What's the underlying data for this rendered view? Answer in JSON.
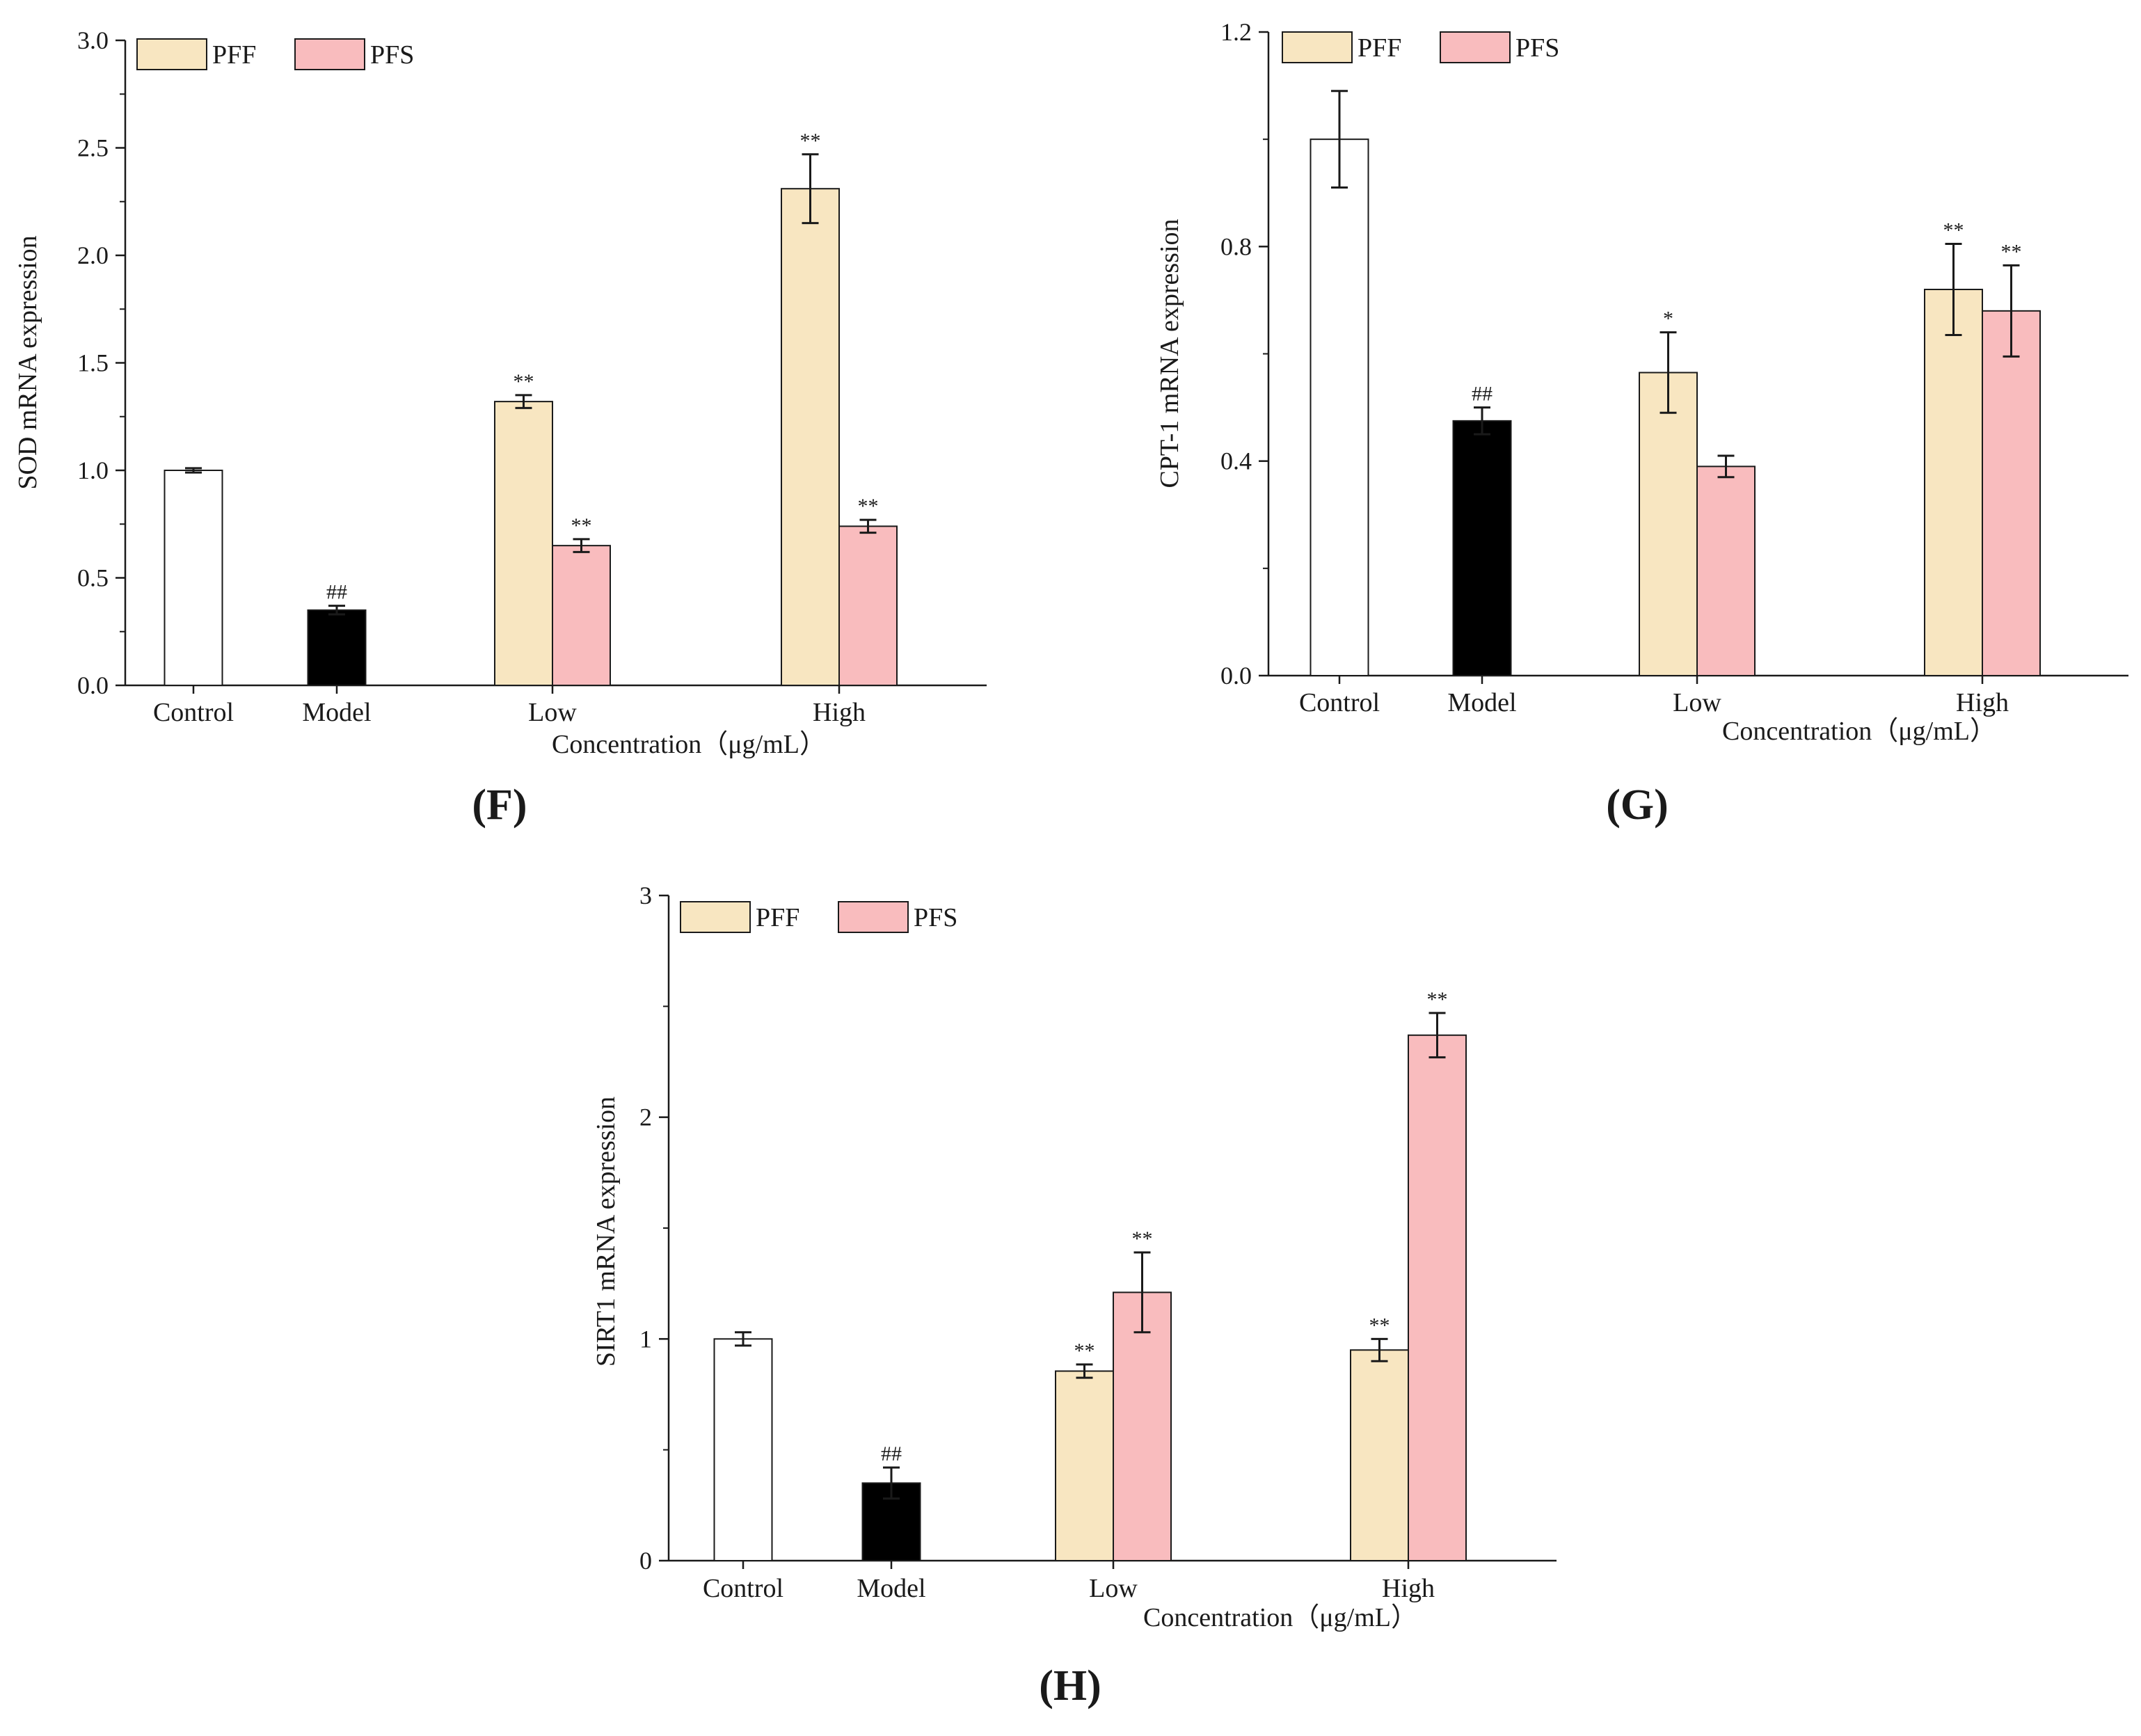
{
  "colors": {
    "PFF": "#f8e6c1",
    "PFS": "#f9bcbe",
    "Control": "#ffffff",
    "Model": "#000000",
    "stroke": "#1a1a1a"
  },
  "chart_data": [
    {
      "id": "F",
      "panel_label": "(F)",
      "type": "bar",
      "ylabel": "SOD mRNA expression",
      "xlabel": "Concentration（μg/mL）",
      "ylim": [
        0,
        3.0
      ],
      "yticks": [
        0,
        0.5,
        1.0,
        1.5,
        2.0,
        2.5,
        3.0
      ],
      "ytick_labels": [
        "0.0",
        "0.5",
        "1.0",
        "1.5",
        "2.0",
        "2.5",
        "3.0"
      ],
      "categories": [
        "Control",
        "Model",
        "Low",
        "High"
      ],
      "legend": [
        "PFF",
        "PFS"
      ],
      "legend_position": "top-left",
      "bars": [
        {
          "category": "Control",
          "series": "Control",
          "value": 1.0,
          "error": 0.01,
          "sig": ""
        },
        {
          "category": "Model",
          "series": "Model",
          "value": 0.35,
          "error": 0.02,
          "sig": "##"
        },
        {
          "category": "Low",
          "series": "PFF",
          "value": 1.32,
          "error": 0.03,
          "sig": "**"
        },
        {
          "category": "Low",
          "series": "PFS",
          "value": 0.65,
          "error": 0.03,
          "sig": "**"
        },
        {
          "category": "High",
          "series": "PFF",
          "value": 2.31,
          "error": 0.16,
          "sig": "**"
        },
        {
          "category": "High",
          "series": "PFS",
          "value": 0.74,
          "error": 0.03,
          "sig": "**"
        }
      ]
    },
    {
      "id": "G",
      "panel_label": "(G)",
      "type": "bar",
      "ylabel": "CPT-1 mRNA expression",
      "xlabel": "Concentration（μg/mL）",
      "ylim": [
        0,
        1.2
      ],
      "yticks": [
        0,
        0.4,
        0.8,
        1.2
      ],
      "ytick_labels": [
        "0.0",
        "0.4",
        "0.8",
        "1.2"
      ],
      "categories": [
        "Control",
        "Model",
        "Low",
        "High"
      ],
      "legend": [
        "PFF",
        "PFS"
      ],
      "legend_position": "top-left",
      "bars": [
        {
          "category": "Control",
          "series": "Control",
          "value": 1.0,
          "error": 0.09,
          "sig": ""
        },
        {
          "category": "Model",
          "series": "Model",
          "value": 0.475,
          "error": 0.025,
          "sig": "##"
        },
        {
          "category": "Low",
          "series": "PFF",
          "value": 0.565,
          "error": 0.075,
          "sig": "*"
        },
        {
          "category": "Low",
          "series": "PFS",
          "value": 0.39,
          "error": 0.02,
          "sig": ""
        },
        {
          "category": "High",
          "series": "PFF",
          "value": 0.72,
          "error": 0.085,
          "sig": "**"
        },
        {
          "category": "High",
          "series": "PFS",
          "value": 0.68,
          "error": 0.085,
          "sig": "**"
        }
      ]
    },
    {
      "id": "H",
      "panel_label": "(H)",
      "type": "bar",
      "ylabel": "SIRT1 mRNA expression",
      "xlabel": "Concentration（μg/mL）",
      "ylim": [
        0,
        3
      ],
      "yticks": [
        0,
        1,
        2,
        3
      ],
      "ytick_labels": [
        "0",
        "1",
        "2",
        "3"
      ],
      "categories": [
        "Control",
        "Model",
        "Low",
        "High"
      ],
      "legend": [
        "PFF",
        "PFS"
      ],
      "legend_position": "top-left",
      "bars": [
        {
          "category": "Control",
          "series": "Control",
          "value": 1.0,
          "error": 0.03,
          "sig": ""
        },
        {
          "category": "Model",
          "series": "Model",
          "value": 0.35,
          "error": 0.07,
          "sig": "##"
        },
        {
          "category": "Low",
          "series": "PFF",
          "value": 0.855,
          "error": 0.03,
          "sig": "**"
        },
        {
          "category": "Low",
          "series": "PFS",
          "value": 1.21,
          "error": 0.18,
          "sig": "**"
        },
        {
          "category": "High",
          "series": "PFF",
          "value": 0.95,
          "error": 0.05,
          "sig": "**"
        },
        {
          "category": "High",
          "series": "PFS",
          "value": 2.37,
          "error": 0.1,
          "sig": "**"
        }
      ]
    }
  ]
}
